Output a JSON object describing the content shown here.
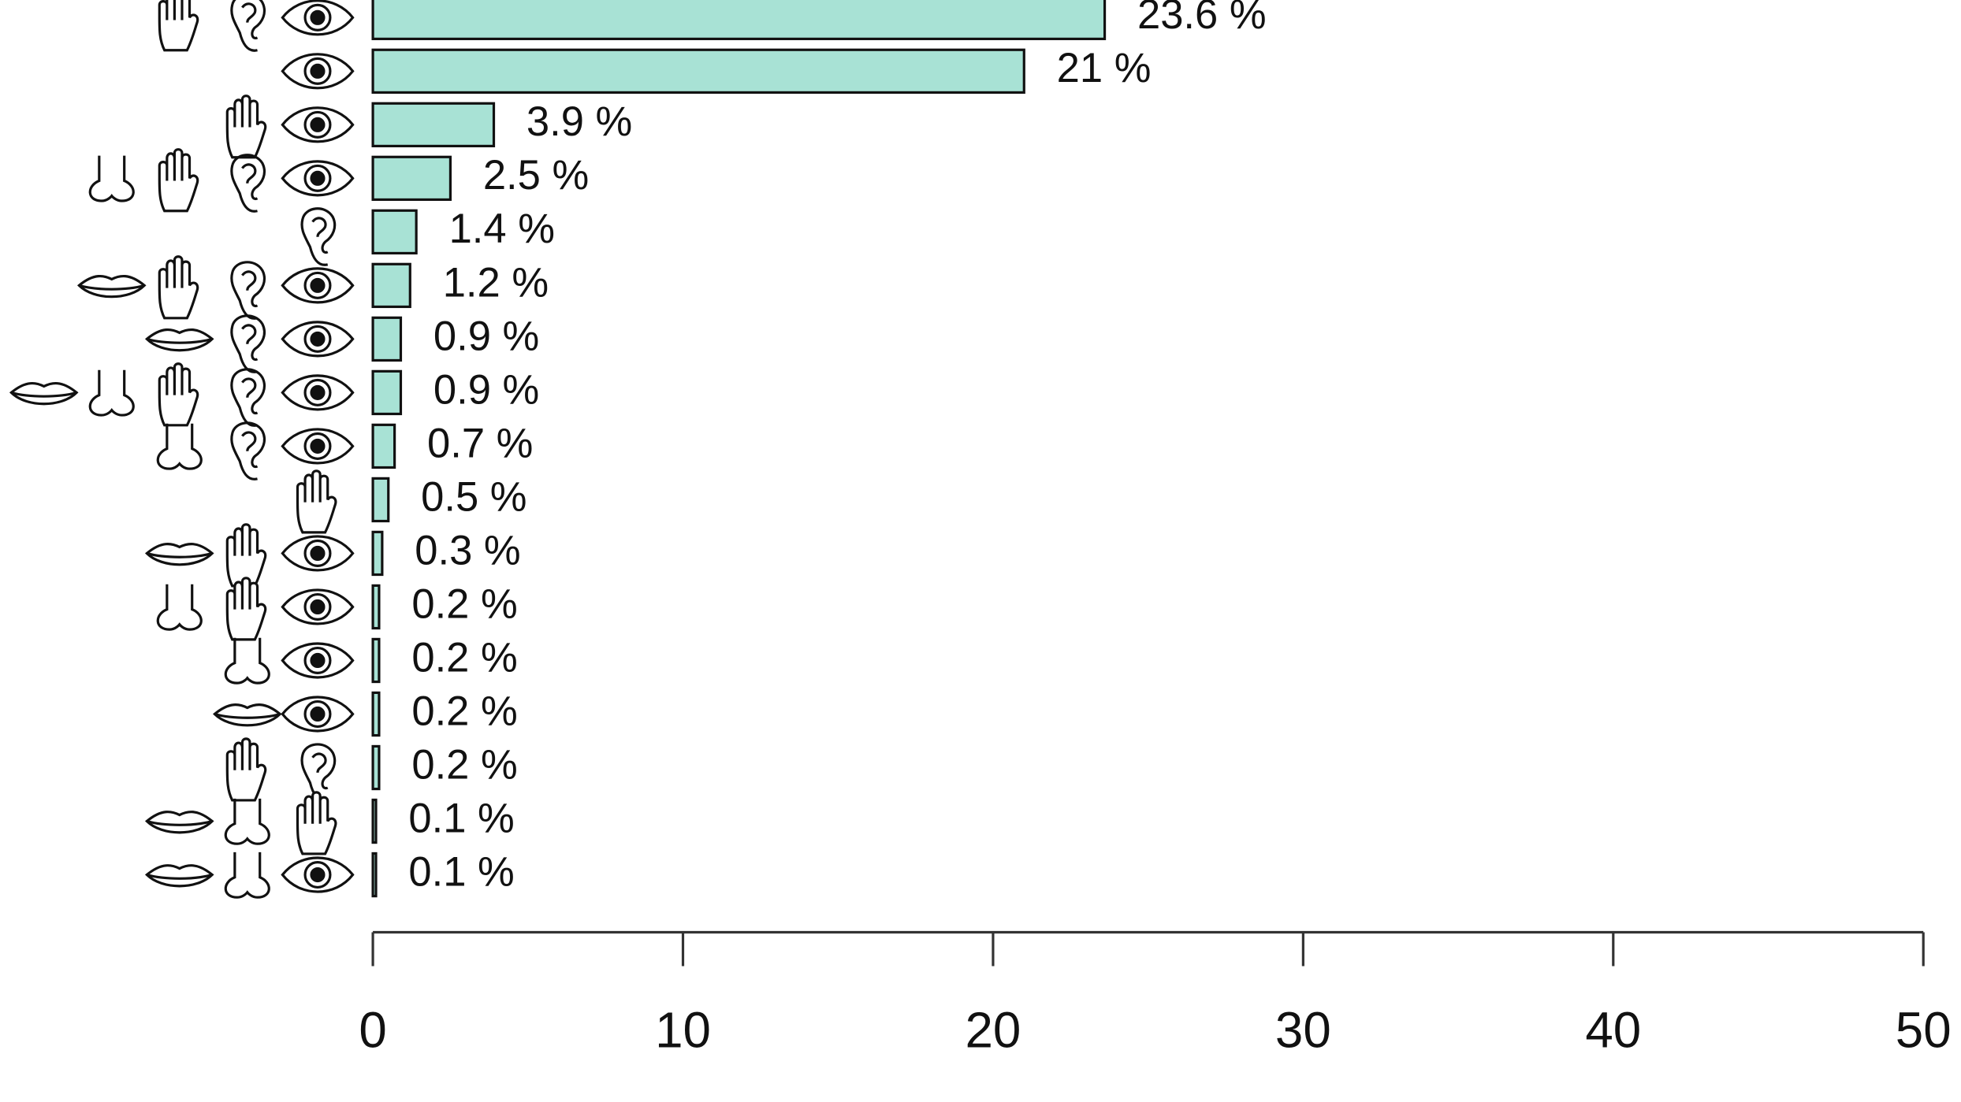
{
  "chart_data": {
    "type": "barh",
    "categories": [
      null,
      null,
      null,
      null,
      null,
      null,
      null,
      null,
      null,
      null,
      null,
      null,
      null,
      null,
      null,
      null,
      null
    ],
    "values": [
      23.6,
      21,
      3.9,
      2.5,
      1.4,
      1.2,
      0.9,
      0.9,
      0.7,
      0.5,
      0.3,
      0.2,
      0.2,
      0.2,
      0.2,
      0.1,
      0.1
    ],
    "value_labels": [
      "23.6 %",
      "21 %",
      "3.9 %",
      "2.5 %",
      "1.4 %",
      "1.2 %",
      "0.9 %",
      "0.9 %",
      "0.7 %",
      "0.5 %",
      "0.3 %",
      "0.2 %",
      "0.2 %",
      "0.2 %",
      "0.2 %",
      "0.1 %",
      "0.1 %"
    ],
    "color": "#a8e2d5",
    "xlim": [
      0,
      50
    ],
    "xticks": [
      0,
      10,
      20,
      30,
      40,
      50
    ],
    "grid": false
  }
}
